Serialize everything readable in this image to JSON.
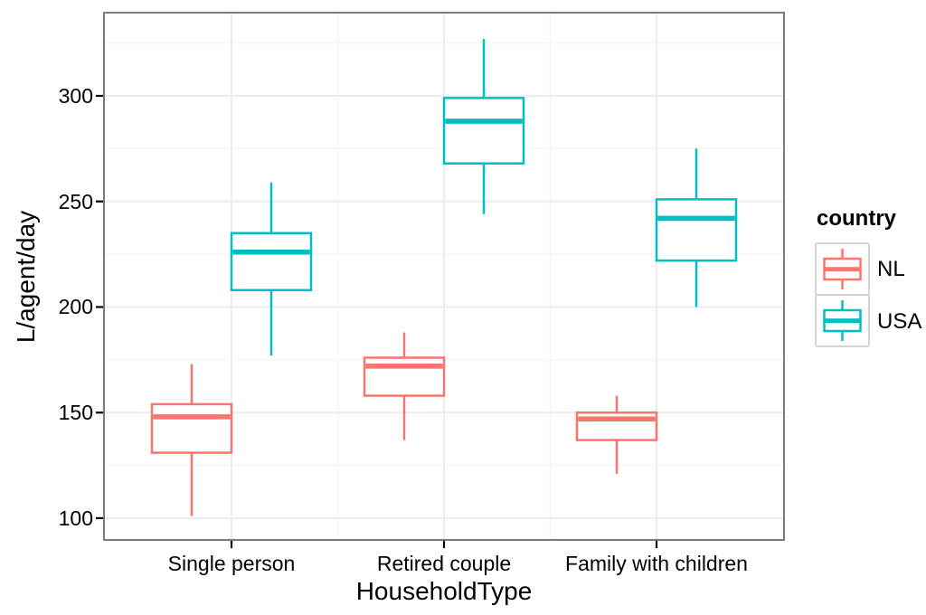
{
  "chart_data": {
    "type": "boxplot",
    "title": "",
    "xlabel": "HouseholdType",
    "ylabel": "L/agent/day",
    "categories": [
      "Single person",
      "Retired couple",
      "Family with children"
    ],
    "yticks": [
      100,
      150,
      200,
      250,
      300
    ],
    "yticks_minor": [
      125,
      175,
      225,
      275,
      325
    ],
    "ylim": [
      89.7,
      339.4
    ],
    "grid": "on",
    "legend": {
      "title": "country",
      "position": "right"
    },
    "colors": {
      "nl": "#F8766D",
      "usa": "#00BFC4",
      "panel_border": "#7b7b7b",
      "grid_major": "#ececec",
      "grid_minor": "#f6f6f6"
    },
    "series": [
      {
        "name": "NL",
        "color": "#F8766D",
        "boxes": [
          {
            "category": "Single person",
            "whisker_low": 101,
            "q1": 131,
            "median": 148,
            "q3": 154,
            "whisker_high": 173
          },
          {
            "category": "Retired couple",
            "whisker_low": 137,
            "q1": 158,
            "median": 172,
            "q3": 176,
            "whisker_high": 188
          },
          {
            "category": "Family with children",
            "whisker_low": 121,
            "q1": 137,
            "median": 147,
            "q3": 150,
            "whisker_high": 158
          }
        ]
      },
      {
        "name": "USA",
        "color": "#00BFC4",
        "boxes": [
          {
            "category": "Single person",
            "whisker_low": 177,
            "q1": 208,
            "median": 226,
            "q3": 235,
            "whisker_high": 259
          },
          {
            "category": "Retired couple",
            "whisker_low": 244,
            "q1": 268,
            "median": 288,
            "q3": 299,
            "whisker_high": 327
          },
          {
            "category": "Family with children",
            "whisker_low": 200,
            "q1": 222,
            "median": 242,
            "q3": 251,
            "whisker_high": 275
          }
        ]
      }
    ]
  }
}
